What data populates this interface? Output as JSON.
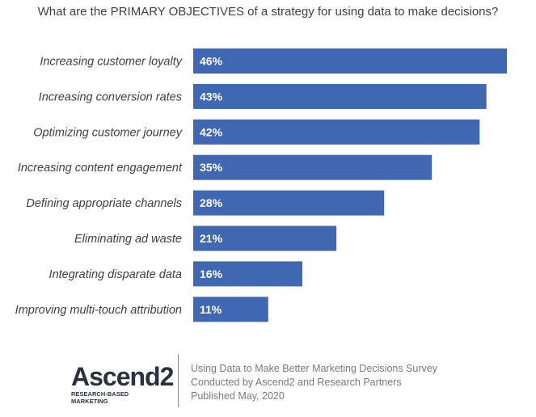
{
  "title": "What are the PRIMARY OBJECTIVES of a strategy for using data to make decisions?",
  "chart_data": {
    "type": "bar",
    "orientation": "horizontal",
    "categories": [
      "Increasing customer loyalty",
      "Increasing conversion rates",
      "Optimizing customer journey",
      "Increasing content engagement",
      "Defining appropriate channels",
      "Eliminating ad waste",
      "Integrating disparate data",
      "Improving multi-touch attribution"
    ],
    "values": [
      46,
      43,
      42,
      35,
      28,
      21,
      16,
      11
    ],
    "value_labels": [
      "46%",
      "43%",
      "42%",
      "35%",
      "28%",
      "21%",
      "16%",
      "11%"
    ],
    "bar_color": "#4068b2",
    "xlim": [
      0,
      46
    ],
    "grid": false,
    "legend": "none"
  },
  "footer": {
    "logo_text": "Ascend2",
    "logo_tagline": "RESEARCH-BASED MARKETING",
    "credit_lines": [
      "Using Data to Make Better Marketing Decisions Survey",
      "Conducted  by Ascend2 and Research Partners",
      "Published May, 2020"
    ]
  }
}
